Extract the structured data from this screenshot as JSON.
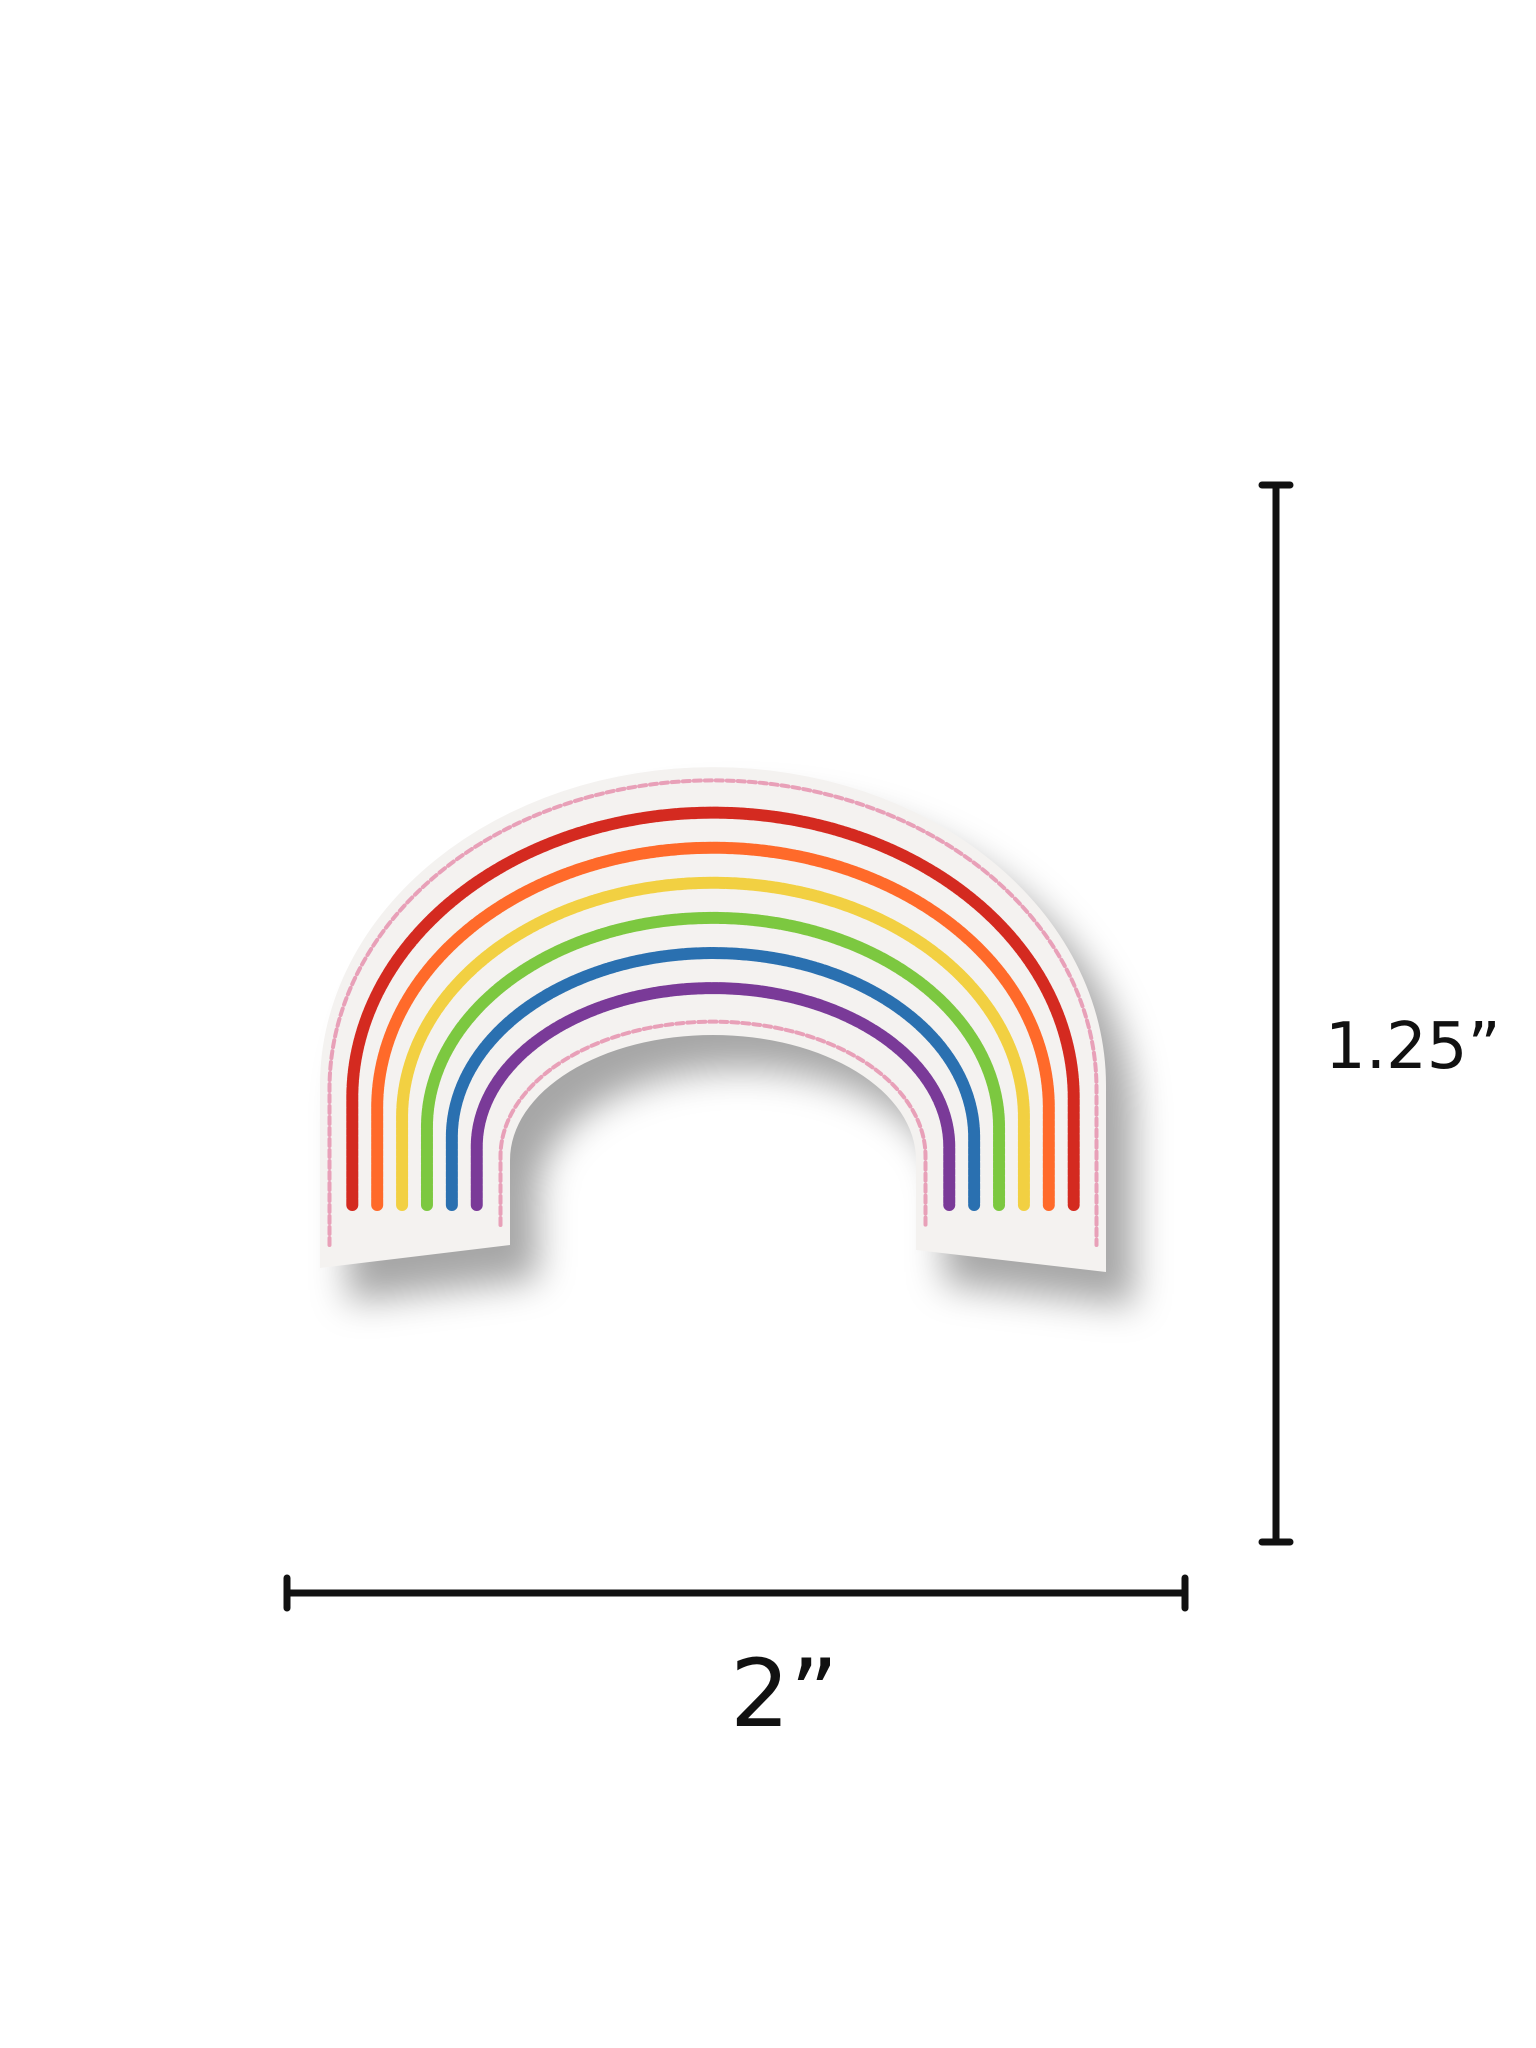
{
  "dimensions": {
    "height_label": "1.25”",
    "width_label": "2”"
  },
  "product": {
    "name_icon": "rainbow-embroidered-patch",
    "felt_color": "#f4f2f0",
    "border_stitch_color": "#e8a0b8",
    "stripe_colors": [
      "#d42a20",
      "#ff6a2a",
      "#f2d042",
      "#7cc840",
      "#2a70b0",
      "#7a3a98"
    ]
  },
  "colors": {
    "line": "#111111",
    "background": "#ffffff"
  }
}
